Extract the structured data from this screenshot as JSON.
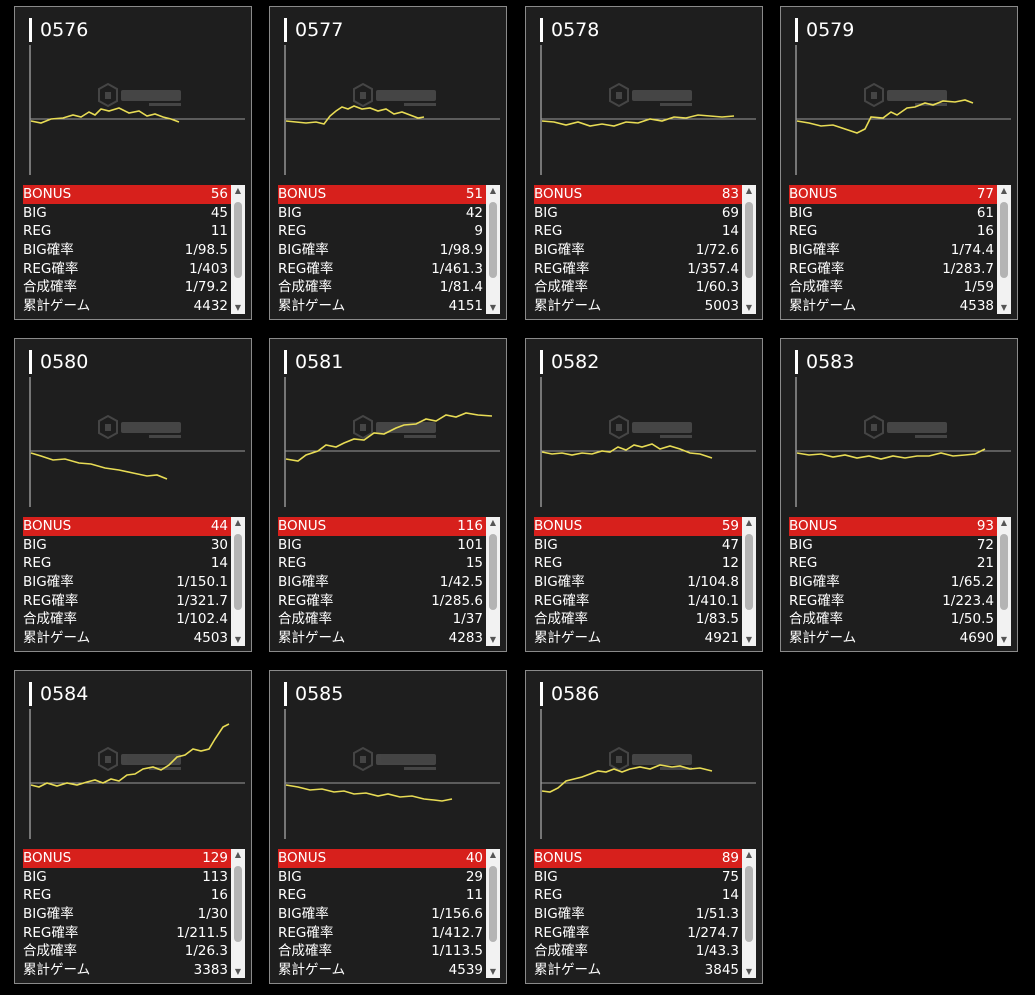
{
  "cards": [
    {
      "id": "0576",
      "bonus": "56",
      "big": "45",
      "reg": "11",
      "big_rate": "1/98.5",
      "reg_rate": "1/403",
      "total_rate": "1/79.2",
      "games": "4432"
    },
    {
      "id": "0577",
      "bonus": "51",
      "big": "42",
      "reg": "9",
      "big_rate": "1/98.9",
      "reg_rate": "1/461.3",
      "total_rate": "1/81.4",
      "games": "4151"
    },
    {
      "id": "0578",
      "bonus": "83",
      "big": "69",
      "reg": "14",
      "big_rate": "1/72.6",
      "reg_rate": "1/357.4",
      "total_rate": "1/60.3",
      "games": "5003"
    },
    {
      "id": "0579",
      "bonus": "77",
      "big": "61",
      "reg": "16",
      "big_rate": "1/74.4",
      "reg_rate": "1/283.7",
      "total_rate": "1/59",
      "games": "4538"
    },
    {
      "id": "0580",
      "bonus": "44",
      "big": "30",
      "reg": "14",
      "big_rate": "1/150.1",
      "reg_rate": "1/321.7",
      "total_rate": "1/102.4",
      "games": "4503"
    },
    {
      "id": "0581",
      "bonus": "116",
      "big": "101",
      "reg": "15",
      "big_rate": "1/42.5",
      "reg_rate": "1/285.6",
      "total_rate": "1/37",
      "games": "4283"
    },
    {
      "id": "0582",
      "bonus": "59",
      "big": "47",
      "reg": "12",
      "big_rate": "1/104.8",
      "reg_rate": "1/410.1",
      "total_rate": "1/83.5",
      "games": "4921"
    },
    {
      "id": "0583",
      "bonus": "93",
      "big": "72",
      "reg": "21",
      "big_rate": "1/65.2",
      "reg_rate": "1/223.4",
      "total_rate": "1/50.5",
      "games": "4690"
    },
    {
      "id": "0584",
      "bonus": "129",
      "big": "113",
      "reg": "16",
      "big_rate": "1/30",
      "reg_rate": "1/211.5",
      "total_rate": "1/26.3",
      "games": "3383"
    },
    {
      "id": "0585",
      "bonus": "40",
      "big": "29",
      "reg": "11",
      "big_rate": "1/156.6",
      "reg_rate": "1/412.7",
      "total_rate": "1/113.5",
      "games": "4539"
    },
    {
      "id": "0586",
      "bonus": "89",
      "big": "75",
      "reg": "14",
      "big_rate": "1/51.3",
      "reg_rate": "1/274.7",
      "total_rate": "1/43.3",
      "games": "3845"
    }
  ],
  "labels": {
    "bonus": "BONUS",
    "big": "BIG",
    "reg": "REG",
    "big_rate": "BIG確率",
    "reg_rate": "REG確率",
    "total_rate": "合成確率",
    "games": "累計ゲーム"
  },
  "colors": {
    "bonus_row": "#d7201c",
    "graph_line": "#e8dc55",
    "card_bg": "#1e1e1e"
  }
}
